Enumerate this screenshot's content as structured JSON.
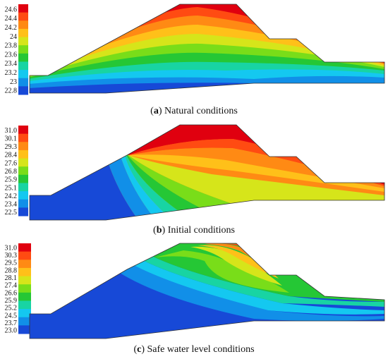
{
  "panels": [
    {
      "label": "a",
      "caption": "Natural conditions",
      "ticks": [
        "24.6",
        "24.4",
        "24.2",
        "24",
        "23.8",
        "23.6",
        "23.4",
        "23.2",
        "23",
        "22.8"
      ],
      "colors": [
        "#e0000f",
        "#ff4b12",
        "#ff8a14",
        "#ffc019",
        "#d6e51a",
        "#79dd19",
        "#25c735",
        "#18d4a3",
        "#14c8f0",
        "#118fe8",
        "#1749d7"
      ]
    },
    {
      "label": "b",
      "caption": "Initial conditions",
      "ticks": [
        "31.0",
        "30.1",
        "29.3",
        "28.4",
        "27.6",
        "26.8",
        "25.9",
        "25.1",
        "24.2",
        "23.4",
        "22.5"
      ],
      "colors": [
        "#e0000f",
        "#ff4b12",
        "#ff8a14",
        "#ffc019",
        "#d6e51a",
        "#79dd19",
        "#25c735",
        "#18d4a3",
        "#14c8f0",
        "#118fe8",
        "#1749d7"
      ]
    },
    {
      "label": "c",
      "caption": "Safe water level conditions",
      "ticks": [
        "31.0",
        "30.3",
        "29.5",
        "28.8",
        "28.1",
        "27.4",
        "26.6",
        "25.9",
        "25.2",
        "24.5",
        "23.7",
        "23.0"
      ],
      "colors": [
        "#e0000f",
        "#ff4b12",
        "#ff8a14",
        "#ffc019",
        "#d6e51a",
        "#79dd19",
        "#25c735",
        "#18d4a3",
        "#14c8f0",
        "#118fe8",
        "#1749d7"
      ]
    }
  ]
}
